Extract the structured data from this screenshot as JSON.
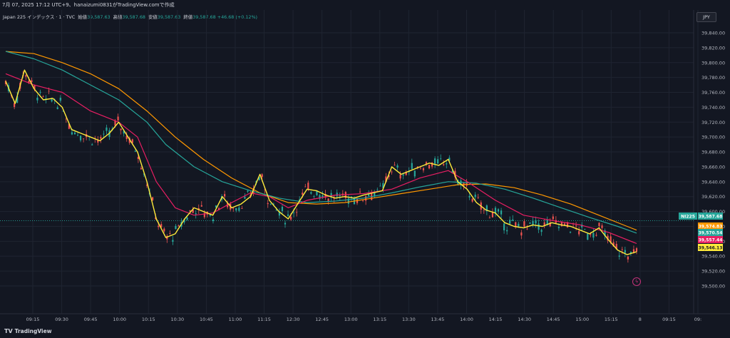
{
  "header": {
    "caption": "7月 07, 2025 17:12 UTC+9、hanaizumi0831がTradingView.comで作成"
  },
  "legend": {
    "symbol": "Japan 225 インデックス · 1 · TVC",
    "open_label": "始値",
    "open_value": "39,587.63",
    "high_label": "高値",
    "high_value": "39,587.68",
    "low_label": "安値",
    "low_value": "39,587.63",
    "close_label": "終値",
    "close_value": "39,587.68",
    "change": "+46.68 (+0.12%)"
  },
  "currency_button": "JPY",
  "footer": {
    "brand_icon": "tv-icon",
    "brand": "TradingView"
  },
  "bolt_icon": "lightning-icon",
  "colors": {
    "background": "#131722",
    "up": "#26a69a",
    "down": "#ef5350",
    "ma_fast": "#ffeb3b",
    "ma_mid": "#e91e63",
    "ma_teal": "#26a69a",
    "ma_slow": "#ff9800"
  },
  "chart_data": {
    "type": "line",
    "ylim": [
      39490,
      39850
    ],
    "y_ticks": [
      "39,500.00",
      "39,520.00",
      "39,540.00",
      "39,560.00",
      "39,580.00",
      "39,600.00",
      "39,620.00",
      "39,640.00",
      "39,660.00",
      "39,680.00",
      "39,700.00",
      "39,720.00",
      "39,740.00",
      "39,760.00",
      "39,780.00",
      "39,800.00",
      "39,820.00",
      "39,840.00"
    ],
    "x_ticks": [
      "09:15",
      "09:30",
      "09:45",
      "10:00",
      "10:15",
      "10:30",
      "10:45",
      "11:00",
      "11:15",
      "12:30",
      "12:45",
      "13:00",
      "13:15",
      "13:30",
      "13:45",
      "14:00",
      "14:15",
      "14:30",
      "14:45",
      "15:00",
      "15:15",
      "8",
      "09:15",
      "09:"
    ],
    "price_badges": [
      {
        "label": "NI225",
        "value": "39,587.68",
        "color": "#26a69a"
      },
      {
        "value": "39,574.83",
        "color": "#ff9800"
      },
      {
        "value": "39,570.54",
        "color": "#26a69a"
      },
      {
        "value": "39,557.44",
        "color": "#e91e63"
      },
      {
        "value": "39,546.13",
        "color": "#ffeb3b"
      }
    ],
    "series": [
      {
        "color": "#ffeb3b",
        "values": [
          [
            0,
            39775
          ],
          [
            1,
            39745
          ],
          [
            2,
            39790
          ],
          [
            3,
            39765
          ],
          [
            4,
            39750
          ],
          [
            5,
            39752
          ],
          [
            6,
            39740
          ],
          [
            7,
            39710
          ],
          [
            8,
            39705
          ],
          [
            9,
            39700
          ],
          [
            10,
            39695
          ],
          [
            11,
            39705
          ],
          [
            12,
            39720
          ],
          [
            13,
            39700
          ],
          [
            14,
            39680
          ],
          [
            15,
            39640
          ],
          [
            16,
            39590
          ],
          [
            17,
            39565
          ],
          [
            18,
            39570
          ],
          [
            19,
            39590
          ],
          [
            20,
            39605
          ],
          [
            21,
            39600
          ],
          [
            22,
            39595
          ],
          [
            23,
            39620
          ],
          [
            24,
            39605
          ],
          [
            25,
            39610
          ],
          [
            26,
            39620
          ],
          [
            27,
            39650
          ],
          [
            28,
            39615
          ],
          [
            29,
            39600
          ],
          [
            30,
            39590
          ],
          [
            31,
            39610
          ],
          [
            32,
            39630
          ],
          [
            33,
            39628
          ],
          [
            34,
            39622
          ],
          [
            35,
            39618
          ],
          [
            36,
            39620
          ],
          [
            37,
            39618
          ],
          [
            38,
            39622
          ],
          [
            39,
            39625
          ],
          [
            40,
            39628
          ],
          [
            41,
            39660
          ],
          [
            42,
            39650
          ],
          [
            43,
            39655
          ],
          [
            44,
            39660
          ],
          [
            45,
            39665
          ],
          [
            46,
            39662
          ],
          [
            47,
            39670
          ],
          [
            48,
            39640
          ],
          [
            49,
            39630
          ],
          [
            50,
            39612
          ],
          [
            51,
            39602
          ],
          [
            52,
            39598
          ],
          [
            53,
            39585
          ],
          [
            54,
            39580
          ],
          [
            55,
            39578
          ],
          [
            56,
            39582
          ],
          [
            57,
            39580
          ],
          [
            58,
            39585
          ],
          [
            59,
            39582
          ],
          [
            60,
            39580
          ],
          [
            61,
            39575
          ],
          [
            62,
            39570
          ],
          [
            63,
            39578
          ],
          [
            64,
            39562
          ],
          [
            65,
            39548
          ],
          [
            66,
            39542
          ],
          [
            67,
            39546
          ]
        ]
      },
      {
        "color": "#e91e63",
        "values": [
          [
            0,
            39785
          ],
          [
            3,
            39770
          ],
          [
            6,
            39760
          ],
          [
            9,
            39735
          ],
          [
            12,
            39720
          ],
          [
            14,
            39700
          ],
          [
            16,
            39640
          ],
          [
            18,
            39605
          ],
          [
            20,
            39595
          ],
          [
            22,
            39598
          ],
          [
            24,
            39612
          ],
          [
            26,
            39625
          ],
          [
            28,
            39620
          ],
          [
            30,
            39605
          ],
          [
            32,
            39615
          ],
          [
            35,
            39622
          ],
          [
            38,
            39624
          ],
          [
            41,
            39630
          ],
          [
            44,
            39645
          ],
          [
            47,
            39655
          ],
          [
            49,
            39640
          ],
          [
            52,
            39615
          ],
          [
            55,
            39595
          ],
          [
            58,
            39588
          ],
          [
            61,
            39582
          ],
          [
            64,
            39572
          ],
          [
            67,
            39557
          ]
        ]
      },
      {
        "color": "#26a69a",
        "values": [
          [
            0,
            39815
          ],
          [
            3,
            39805
          ],
          [
            6,
            39790
          ],
          [
            9,
            39770
          ],
          [
            12,
            39750
          ],
          [
            15,
            39720
          ],
          [
            17,
            39690
          ],
          [
            20,
            39660
          ],
          [
            23,
            39640
          ],
          [
            26,
            39628
          ],
          [
            29,
            39618
          ],
          [
            32,
            39612
          ],
          [
            35,
            39614
          ],
          [
            38,
            39618
          ],
          [
            41,
            39625
          ],
          [
            44,
            39633
          ],
          [
            47,
            39640
          ],
          [
            50,
            39638
          ],
          [
            53,
            39630
          ],
          [
            56,
            39618
          ],
          [
            59,
            39605
          ],
          [
            62,
            39592
          ],
          [
            65,
            39580
          ],
          [
            67,
            39571
          ]
        ]
      },
      {
        "color": "#ff9800",
        "values": [
          [
            0,
            39815
          ],
          [
            3,
            39812
          ],
          [
            6,
            39800
          ],
          [
            9,
            39785
          ],
          [
            12,
            39765
          ],
          [
            15,
            39735
          ],
          [
            18,
            39700
          ],
          [
            21,
            39670
          ],
          [
            24,
            39645
          ],
          [
            27,
            39625
          ],
          [
            30,
            39612
          ],
          [
            33,
            39610
          ],
          [
            36,
            39612
          ],
          [
            39,
            39618
          ],
          [
            42,
            39624
          ],
          [
            45,
            39630
          ],
          [
            48,
            39636
          ],
          [
            51,
            39637
          ],
          [
            54,
            39632
          ],
          [
            57,
            39622
          ],
          [
            60,
            39610
          ],
          [
            63,
            39595
          ],
          [
            66,
            39580
          ],
          [
            67,
            39575
          ]
        ]
      }
    ]
  }
}
